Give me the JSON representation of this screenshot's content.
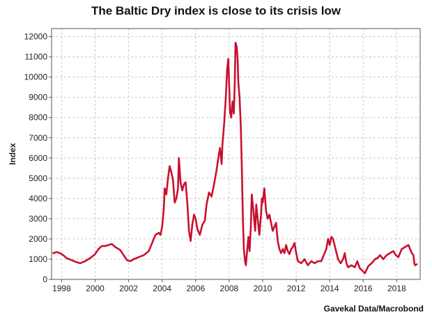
{
  "title": "The Baltic Dry index is close to its crisis low",
  "source": "Gavekal Data/Macrobond",
  "colors": {
    "line": "#c8102e",
    "grid": "#c8c8c8",
    "frame": "#555555"
  },
  "chart_data": {
    "type": "line",
    "title": "The Baltic Dry index is close to its crisis low",
    "xlabel": "",
    "ylabel": "Index",
    "xlim": [
      1997.4,
      2019.4
    ],
    "ylim": [
      0,
      12400
    ],
    "x_ticks": [
      1998,
      2000,
      2002,
      2004,
      2006,
      2008,
      2010,
      2012,
      2014,
      2016,
      2018
    ],
    "y_ticks": [
      0,
      1000,
      2000,
      3000,
      4000,
      5000,
      6000,
      7000,
      8000,
      9000,
      10000,
      11000,
      12000
    ],
    "grid": true,
    "legend": "none",
    "series": [
      {
        "x": [
          1997.5,
          1997.7,
          1997.9,
          1998.1,
          1998.3,
          1998.6,
          1998.9,
          1999.1,
          1999.4,
          1999.7,
          2000.0,
          2000.2,
          2000.4,
          2000.6,
          2000.8,
          2001.0,
          2001.2,
          2001.5,
          2001.7,
          2001.9,
          2002.1,
          2002.3,
          2002.6,
          2002.9,
          2003.2,
          2003.4,
          2003.6,
          2003.8,
          2003.9,
          2004.0,
          2004.1,
          2004.15,
          2004.25,
          2004.35,
          2004.45,
          2004.55,
          2004.65,
          2004.75,
          2004.85,
          2004.95,
          2005.0,
          2005.1,
          2005.2,
          2005.3,
          2005.4,
          2005.5,
          2005.6,
          2005.7,
          2005.8,
          2005.9,
          2006.0,
          2006.1,
          2006.25,
          2006.4,
          2006.55,
          2006.65,
          2006.8,
          2006.95,
          2007.1,
          2007.25,
          2007.35,
          2007.45,
          2007.55,
          2007.6,
          2007.7,
          2007.8,
          2007.88,
          2007.95,
          2008.05,
          2008.12,
          2008.2,
          2008.28,
          2008.33,
          2008.38,
          2008.45,
          2008.5,
          2008.55,
          2008.62,
          2008.7,
          2008.77,
          2008.82,
          2008.88,
          2008.95,
          2009.0,
          2009.08,
          2009.15,
          2009.22,
          2009.3,
          2009.35,
          2009.45,
          2009.55,
          2009.62,
          2009.7,
          2009.8,
          2009.9,
          2009.95,
          2010.0,
          2010.1,
          2010.2,
          2010.3,
          2010.4,
          2010.5,
          2010.6,
          2010.7,
          2010.8,
          2010.9,
          2011.0,
          2011.1,
          2011.2,
          2011.3,
          2011.4,
          2011.5,
          2011.6,
          2011.7,
          2011.8,
          2011.9,
          2012.0,
          2012.1,
          2012.3,
          2012.5,
          2012.7,
          2012.9,
          2013.1,
          2013.3,
          2013.5,
          2013.7,
          2013.8,
          2013.9,
          2014.0,
          2014.1,
          2014.2,
          2014.35,
          2014.5,
          2014.65,
          2014.8,
          2014.9,
          2015.0,
          2015.1,
          2015.3,
          2015.5,
          2015.65,
          2015.8,
          2016.0,
          2016.1,
          2016.3,
          2016.5,
          2016.7,
          2016.85,
          2017.0,
          2017.2,
          2017.4,
          2017.6,
          2017.8,
          2017.95,
          2018.1,
          2018.3,
          2018.5,
          2018.7,
          2018.8,
          2018.9,
          2019.0,
          2019.05,
          2019.1,
          2019.2
        ],
        "values": [
          1300,
          1350,
          1300,
          1200,
          1050,
          950,
          850,
          800,
          900,
          1050,
          1250,
          1500,
          1650,
          1650,
          1700,
          1750,
          1600,
          1450,
          1200,
          950,
          900,
          1000,
          1100,
          1200,
          1400,
          1800,
          2200,
          2300,
          2200,
          2600,
          3500,
          4500,
          4200,
          5000,
          5600,
          5300,
          4900,
          3800,
          4000,
          4500,
          6000,
          4800,
          4400,
          4700,
          4800,
          3800,
          2400,
          1900,
          2700,
          3200,
          3000,
          2500,
          2200,
          2700,
          2900,
          3700,
          4300,
          4100,
          4700,
          5400,
          6000,
          6500,
          5700,
          6700,
          7700,
          9000,
          10400,
          10900,
          8300,
          8000,
          8800,
          8200,
          9500,
          11700,
          11500,
          11000,
          9700,
          9000,
          7500,
          5000,
          3000,
          1500,
          900,
          700,
          1500,
          2100,
          1400,
          2700,
          4200,
          3400,
          2400,
          3700,
          3000,
          2200,
          3200,
          4000,
          3800,
          4500,
          3400,
          3000,
          3200,
          2800,
          2400,
          2600,
          2800,
          1900,
          1500,
          1300,
          1500,
          1300,
          1700,
          1400,
          1250,
          1500,
          1600,
          1800,
          1300,
          900,
          800,
          1000,
          700,
          900,
          800,
          900,
          900,
          1300,
          1500,
          2000,
          1700,
          2100,
          2000,
          1500,
          1000,
          800,
          1000,
          1300,
          800,
          600,
          700,
          600,
          900,
          550,
          400,
          300,
          650,
          800,
          1000,
          1050,
          1200,
          1000,
          1200,
          1300,
          1400,
          1200,
          1100,
          1500,
          1600,
          1700,
          1500,
          1300,
          1200,
          800,
          700,
          750
        ]
      }
    ]
  }
}
